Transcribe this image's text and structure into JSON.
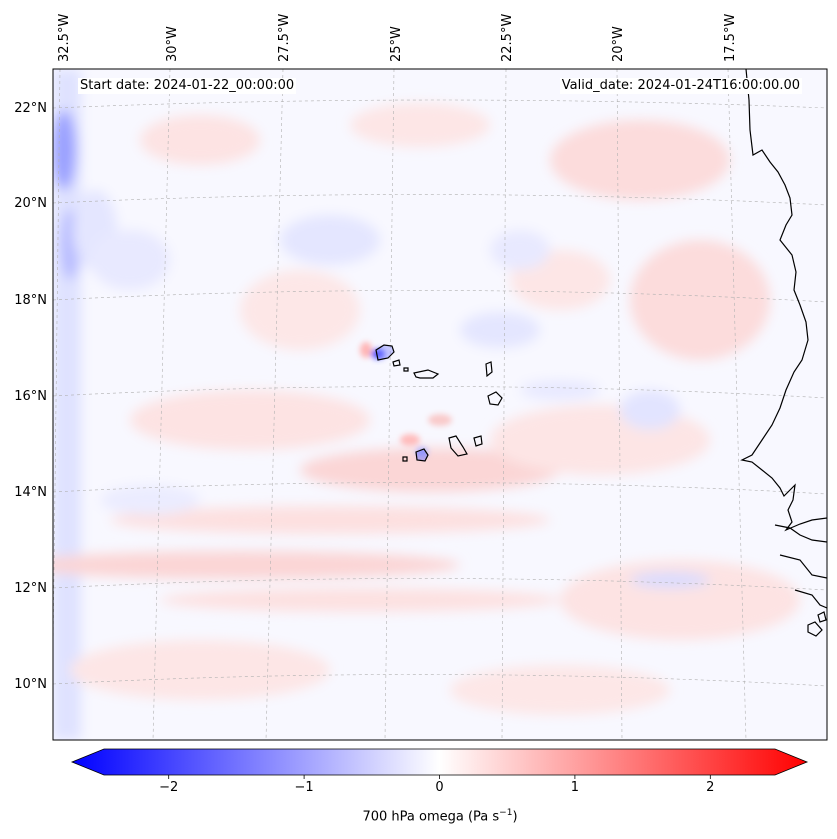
{
  "header": {
    "start_label": "Start date: 2024-01-22_00:00:00",
    "valid_label": "Valid_date: 2024-01-24T16:00:00.00"
  },
  "map": {
    "projection": "lambert-conformal",
    "lon_range": [
      -33,
      -15.5
    ],
    "lat_range": [
      8.8,
      22.8
    ],
    "lon_ticks": [
      "32.5°W",
      "30°W",
      "27.5°W",
      "25°W",
      "22.5°W",
      "20°W",
      "17.5°W"
    ],
    "lat_ticks": [
      "22°N",
      "20°N",
      "18°N",
      "16°N",
      "14°N",
      "12°N",
      "10°N"
    ],
    "field": "700 hPa omega",
    "gridlines": true,
    "coastline_color": "#000000"
  },
  "colorbar": {
    "label": "700 hPa omega (Pa s",
    "label_sup": "−1",
    "label_end": ")",
    "vmin": -2.7,
    "vmax": 2.7,
    "ticks": [
      "−2",
      "−1",
      "0",
      "1",
      "2"
    ],
    "tick_values": [
      -2,
      -1,
      0,
      1,
      2
    ],
    "colormap": "bwr",
    "low_color": "#0000ff",
    "mid_color": "#ffffff",
    "high_color": "#ff0000",
    "extend": "both"
  }
}
